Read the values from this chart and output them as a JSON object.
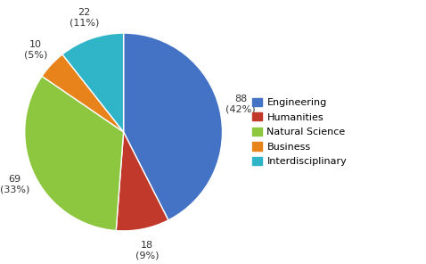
{
  "labels": [
    "Engineering",
    "Humanities",
    "Natural Science",
    "Business",
    "Interdisciplinary"
  ],
  "values": [
    88,
    18,
    69,
    10,
    22
  ],
  "percentages": [
    42,
    9,
    33,
    5,
    11
  ],
  "colors": [
    "#4472c4",
    "#c0392b",
    "#8dc63f",
    "#e8821a",
    "#30b4c8"
  ],
  "legend_labels": [
    "Engineering",
    "Humanities",
    "Natural Science",
    "Business",
    "Interdisciplinary"
  ],
  "startangle": 90,
  "background_color": "#ffffff",
  "label_distances": [
    1.22,
    1.22,
    1.22,
    1.22,
    1.22
  ]
}
